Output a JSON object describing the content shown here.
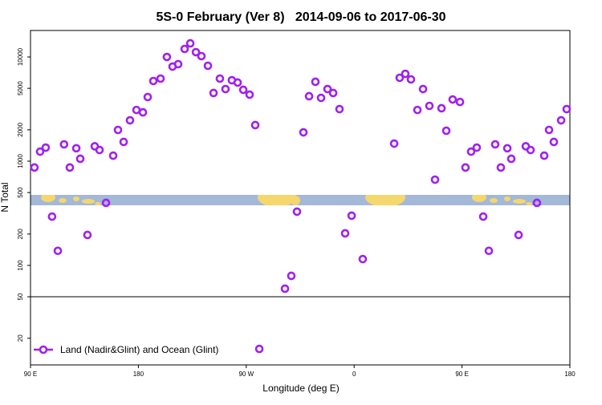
{
  "chart_data": {
    "type": "scatter",
    "title": "5S-0 February (Ver 8)   2014-09-06 to 2017-06-30",
    "x_label": "Longitude (deg E)",
    "y_label": "N Total",
    "log_y": true,
    "legend": "bottom-left",
    "hline": 50,
    "xlim": [
      90,
      540
    ],
    "ylim": [
      11.1,
      17950
    ],
    "xticks": [
      {
        "value": 90,
        "label": "90 E"
      },
      180,
      {
        "value": 270,
        "label": "90 W"
      },
      {
        "value": 360,
        "label": "0"
      },
      {
        "value": 450,
        "label": "90 E"
      },
      {
        "value": 540,
        "label": "180"
      }
    ],
    "yticks": [
      20,
      50,
      100,
      200,
      500,
      1000,
      2000,
      5000,
      10000
    ],
    "series": [
      {
        "name": "Land (Nadir&Glint) and Ocean (Glint)",
        "color": "#a020f0",
        "x": [
          93.3,
          98,
          102.7,
          108,
          112.8,
          118,
          122.8,
          128.2,
          131.5,
          137.5,
          143.6,
          147.6,
          153,
          159,
          163,
          167.7,
          173,
          178.4,
          183.8,
          187.8,
          192.5,
          198.5,
          203.8,
          208.5,
          213.2,
          218.6,
          223.3,
          228,
          232.6,
          238,
          242.7,
          248,
          252.7,
          258,
          262.8,
          267.5,
          272.8,
          277.5,
          280.9,
          302.3,
          307.6,
          312.3,
          317.7,
          322.4,
          327.7,
          332.4,
          337.8,
          342.5,
          347.8,
          352.5,
          357.9,
          367.2,
          393.4,
          398,
          402.7,
          407.4,
          412.8,
          417.5,
          422.8,
          427.5,
          432.9,
          436.9,
          442.2,
          448.3,
          452.9,
          457.6,
          462.3,
          467.7,
          472.4,
          477.7,
          482.4,
          487.8,
          491.1,
          497.2,
          503.2,
          507.2,
          512.5,
          518.6,
          522.6,
          526.6,
          532.7,
          537.3
        ],
        "values": [
          870,
          1235,
          1350,
          294,
          138,
          1450,
          870,
          1330,
          1055,
          196,
          1390,
          1280,
          398,
          1130,
          1995,
          1530,
          2465,
          3100,
          2940,
          4125,
          5880,
          6200,
          10000,
          8080,
          8530,
          11940,
          13500,
          11120,
          10180,
          8230,
          4510,
          6200,
          4920,
          5980,
          5680,
          4840,
          4350,
          2220,
          15.8,
          59.8,
          79.4,
          328,
          1890,
          4200,
          5780,
          4050,
          4920,
          4510,
          3160,
          203,
          300,
          115,
          1475,
          6310,
          6890,
          6090,
          3100,
          4920,
          3395,
          665,
          3220,
          1960,
          3910,
          3700,
          870,
          1235,
          1350,
          294,
          138,
          1450,
          870,
          1330,
          1055,
          196,
          1390,
          1280,
          398,
          1130,
          1995,
          1530,
          2465,
          3160
        ]
      }
    ]
  }
}
